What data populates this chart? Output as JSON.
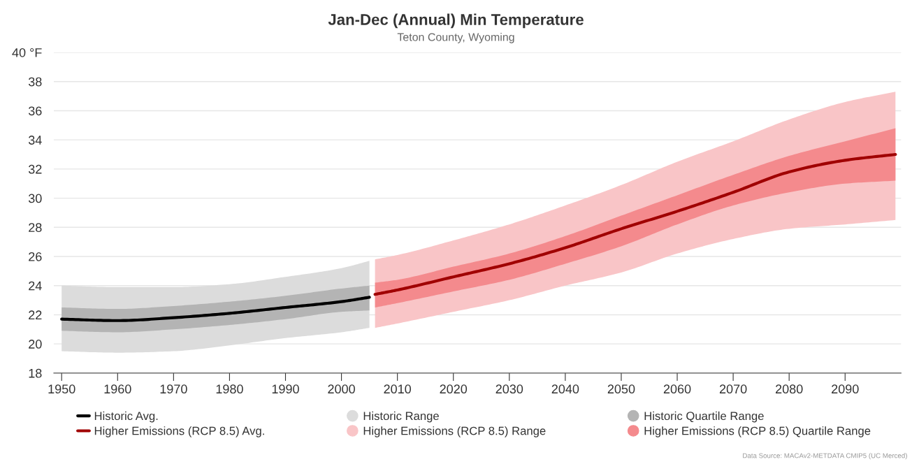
{
  "chart_data": {
    "type": "line",
    "title": "Jan-Dec (Annual) Min Temperature",
    "subtitle": "Teton County, Wyoming",
    "series": [
      {
        "name": "Historic Avg.",
        "color": "#000000",
        "x": [
          1950,
          1960,
          1970,
          1980,
          1990,
          2000,
          2005
        ],
        "values": [
          21.7,
          21.6,
          21.8,
          22.1,
          22.5,
          22.9,
          23.2
        ]
      },
      {
        "name": "Historic Range",
        "color": "#dcdcdc",
        "x": [
          1950,
          1960,
          1970,
          1980,
          1990,
          2000,
          2005
        ],
        "values": [
          null,
          null,
          null,
          null,
          null,
          null,
          null
        ],
        "lower": [
          19.5,
          19.4,
          19.5,
          19.9,
          20.4,
          20.8,
          21.1
        ],
        "upper": [
          24.0,
          23.9,
          23.9,
          24.1,
          24.6,
          25.2,
          25.7
        ]
      },
      {
        "name": "Historic Quartile Range",
        "color": "#b4b4b4",
        "x": [
          1950,
          1960,
          1970,
          1980,
          1990,
          2000,
          2005
        ],
        "values": [
          null,
          null,
          null,
          null,
          null,
          null,
          null
        ],
        "lower": [
          20.9,
          20.8,
          21.0,
          21.3,
          21.7,
          22.2,
          22.3
        ],
        "upper": [
          22.5,
          22.4,
          22.6,
          22.9,
          23.3,
          23.8,
          24.0
        ]
      },
      {
        "name": "Higher Emissions (RCP 8.5) Avg.",
        "color": "#a00000",
        "x": [
          2006,
          2010,
          2020,
          2030,
          2040,
          2050,
          2060,
          2070,
          2080,
          2090,
          2099
        ],
        "values": [
          23.4,
          23.7,
          24.6,
          25.5,
          26.6,
          27.9,
          29.1,
          30.4,
          31.8,
          32.6,
          33.0
        ]
      },
      {
        "name": "Higher Emissions (RCP 8.5) Range",
        "color": "#f9c5c7",
        "x": [
          2006,
          2010,
          2020,
          2030,
          2040,
          2050,
          2060,
          2070,
          2080,
          2090,
          2099
        ],
        "values": [
          null,
          null,
          null,
          null,
          null,
          null,
          null,
          null,
          null,
          null,
          null
        ],
        "lower": [
          21.1,
          21.4,
          22.2,
          23.0,
          24.0,
          24.9,
          26.2,
          27.2,
          27.9,
          28.2,
          28.5
        ],
        "upper": [
          25.8,
          26.1,
          27.1,
          28.2,
          29.5,
          30.9,
          32.5,
          33.9,
          35.4,
          36.6,
          37.3
        ]
      },
      {
        "name": "Higher Emissions (RCP 8.5) Quartile Range",
        "color": "#f48a8d",
        "x": [
          2006,
          2010,
          2020,
          2030,
          2040,
          2050,
          2060,
          2070,
          2080,
          2090,
          2099
        ],
        "values": [
          null,
          null,
          null,
          null,
          null,
          null,
          null,
          null,
          null,
          null,
          null
        ],
        "lower": [
          22.5,
          22.8,
          23.6,
          24.4,
          25.5,
          26.7,
          28.2,
          29.5,
          30.4,
          31.0,
          31.2
        ],
        "upper": [
          24.2,
          24.4,
          25.3,
          26.2,
          27.4,
          28.8,
          30.2,
          31.6,
          32.9,
          33.9,
          34.8
        ]
      }
    ],
    "xlim": [
      1948.6,
      2100
    ],
    "xticks": [
      1950,
      1960,
      1970,
      1980,
      1990,
      2000,
      2010,
      2020,
      2030,
      2040,
      2050,
      2060,
      2070,
      2080,
      2090
    ],
    "ylim": [
      18,
      40
    ],
    "yticks": [
      18,
      20,
      22,
      24,
      26,
      28,
      30,
      32,
      34,
      36,
      38,
      {
        "value": 40,
        "label": "40 °F"
      }
    ],
    "grid": "y",
    "legend": "bottom",
    "annotations": [
      "Data Source: MACAv2-METDATA CMIP5 (UC Merced)"
    ]
  }
}
